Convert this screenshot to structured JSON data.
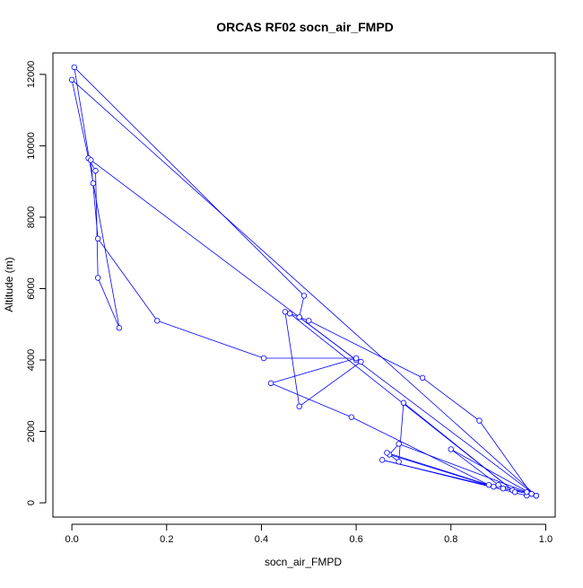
{
  "chart_data": {
    "type": "line",
    "title": "ORCAS RF02 socn_air_FMPD",
    "xlabel": "socn_air_FMPD",
    "ylabel": "Altitude (m)",
    "xlim": [
      -0.04,
      1.02
    ],
    "ylim": [
      -400,
      12600
    ],
    "x_ticks": [
      0.0,
      0.2,
      0.4,
      0.6,
      0.8,
      1.0
    ],
    "x_tick_labels": [
      "0.0",
      "0.2",
      "0.4",
      "0.6",
      "0.8",
      "1.0"
    ],
    "y_ticks": [
      0,
      2000,
      4000,
      6000,
      8000,
      10000,
      12000
    ],
    "y_tick_labels": [
      "0",
      "2000",
      "4000",
      "6000",
      "8000",
      "10000",
      "12000"
    ],
    "grid": false,
    "legend": "none",
    "line_style": "line with open circle markers",
    "series": [
      {
        "color": "#0000ff",
        "x": [
          0.98,
          0.0,
          0.035,
          0.05,
          0.055,
          0.1,
          0.045,
          0.005,
          0.49,
          0.48,
          0.6,
          0.61,
          0.48,
          0.45,
          0.5,
          0.74,
          0.86,
          0.97,
          0.9,
          0.8,
          0.97,
          0.96,
          0.655,
          0.89,
          0.67,
          0.69,
          0.96,
          0.91,
          0.93,
          0.98,
          0.04,
          0.055,
          0.18,
          0.405,
          0.6,
          0.42,
          0.59,
          0.88,
          0.665,
          0.69,
          0.7,
          0.935,
          0.46
        ],
        "y": [
          200,
          11850,
          9650,
          9300,
          6300,
          4900,
          8950,
          12200,
          5800,
          5200,
          4000,
          3950,
          2700,
          5350,
          5100,
          3500,
          2300,
          250,
          500,
          1500,
          250,
          200,
          1200,
          450,
          1350,
          1650,
          300,
          400,
          350,
          200,
          9600,
          7400,
          5100,
          4050,
          4050,
          3350,
          2400,
          500,
          1400,
          1150,
          2800,
          300,
          5300
        ]
      }
    ]
  }
}
